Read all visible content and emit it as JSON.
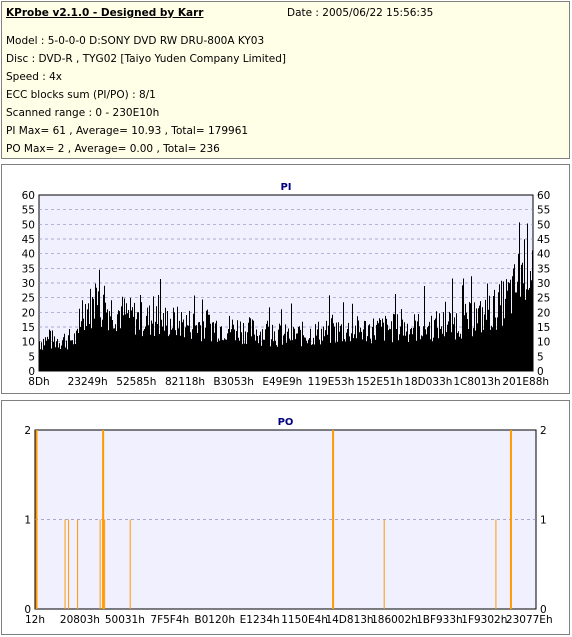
{
  "info": {
    "title": "KProbe v2.1.0 - Designed by Karr",
    "date": "Date : 2005/06/22 15:56:35",
    "model": "Model : 5-0-0-0 D:SONY    DVD RW DRU-800A  KY03",
    "disc": "Disc : DVD-R , TYG02 [Taiyo Yuden Company Limited]",
    "speed": "Speed : 4x",
    "ecc": "ECC blocks sum (PI/PO) : 8/1",
    "range": "Scanned range : 0 - 230E10h",
    "pi_stats": "PI Max= 61 , Average= 10.93 , Total= 179961",
    "po_stats": "PO Max= 2 , Average= 0.00 , Total= 236"
  },
  "colors": {
    "pi": "#000000",
    "po": "#ff9900",
    "title": "#000080",
    "plot_bg": "#f0f0ff"
  },
  "chart_data": [
    {
      "type": "bar",
      "title": "PI",
      "ylim": [
        0,
        60
      ],
      "yticks": [
        "0",
        "5",
        "10",
        "15",
        "20",
        "25",
        "30",
        "35",
        "40",
        "45",
        "50",
        "55",
        "60"
      ],
      "xticks": [
        "8Dh",
        "23249h",
        "52585h",
        "82118h",
        "B3053h",
        "E49E9h",
        "119E53h",
        "152E51h",
        "18D033h",
        "1C8013h",
        "201E88h"
      ],
      "grid": true,
      "x_range": [
        0,
        1
      ],
      "profile": [
        [
          0,
          12
        ],
        [
          0.08,
          13
        ],
        [
          0.085,
          25
        ],
        [
          0.11,
          26
        ],
        [
          0.14,
          25
        ],
        [
          0.2,
          21
        ],
        [
          0.3,
          19
        ],
        [
          0.4,
          17
        ],
        [
          0.5,
          14
        ],
        [
          0.55,
          15
        ],
        [
          0.6,
          16
        ],
        [
          0.7,
          17
        ],
        [
          0.8,
          18
        ],
        [
          0.86,
          20
        ],
        [
          0.9,
          22
        ],
        [
          0.93,
          26
        ],
        [
          0.96,
          32
        ],
        [
          0.98,
          42
        ],
        [
          1.0,
          48
        ]
      ]
    },
    {
      "type": "bar",
      "title": "PO",
      "ylim": [
        0,
        2
      ],
      "yticks": [
        "0",
        "1",
        "2"
      ],
      "xticks": [
        "12h",
        "20803h",
        "50031h",
        "7F5F4h",
        "B0120h",
        "E1234h",
        "1150E4h",
        "14D813h",
        "186002h",
        "1BF933h",
        "1F9302h",
        "23077Eh"
      ],
      "grid": true,
      "x_range": [
        0,
        1
      ],
      "points": [
        [
          0.003,
          2
        ],
        [
          0.06,
          1
        ],
        [
          0.067,
          1
        ],
        [
          0.085,
          1
        ],
        [
          0.13,
          1
        ],
        [
          0.136,
          2
        ],
        [
          0.139,
          1
        ],
        [
          0.19,
          1
        ],
        [
          0.595,
          2
        ],
        [
          0.697,
          1
        ],
        [
          0.92,
          1
        ],
        [
          0.95,
          2
        ]
      ]
    }
  ]
}
